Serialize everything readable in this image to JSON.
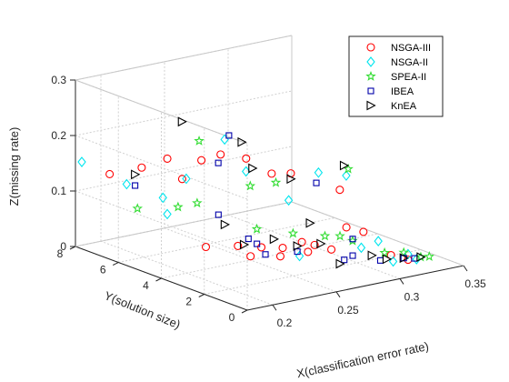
{
  "chart_data": {
    "type": "scatter",
    "title": "",
    "xlabel": "X(classification error rate)",
    "ylabel": "Y(solution size)",
    "zlabel": "Z(missing rate)",
    "xlim": [
      0.18,
      0.35
    ],
    "ylim": [
      0,
      8
    ],
    "zlim": [
      0,
      0.3
    ],
    "x_ticks": [
      "0.2",
      "0.25",
      "0.3",
      "0.35"
    ],
    "y_ticks": [
      "0",
      "2",
      "4",
      "6",
      "8"
    ],
    "z_ticks": [
      "0",
      "0.1",
      "0.2",
      "0.3"
    ],
    "grid": true,
    "legend_position": "top-right",
    "series": [
      {
        "name": "NSGA-III",
        "color": "#ff0000",
        "marker": "circle",
        "points": [
          [
            0.19,
            7.0,
            0.14
          ],
          [
            0.2,
            6.1,
            0.16
          ],
          [
            0.21,
            5.5,
            0.18
          ],
          [
            0.22,
            5.4,
            0.14
          ],
          [
            0.225,
            4.8,
            0.18
          ],
          [
            0.235,
            4.5,
            0.19
          ],
          [
            0.25,
            4.2,
            0.18
          ],
          [
            0.265,
            3.9,
            0.15
          ],
          [
            0.275,
            3.6,
            0.15
          ],
          [
            0.3,
            2.8,
            0.12
          ],
          [
            0.215,
            4.0,
            0.04
          ],
          [
            0.225,
            3.1,
            0.05
          ],
          [
            0.235,
            2.6,
            0.05
          ],
          [
            0.245,
            2.2,
            0.05
          ],
          [
            0.255,
            1.9,
            0.06
          ],
          [
            0.265,
            1.9,
            0.05
          ],
          [
            0.24,
            3.4,
            0.02
          ],
          [
            0.255,
            2.9,
            0.02
          ],
          [
            0.275,
            2.8,
            0.02
          ],
          [
            0.29,
            2.6,
            0.02
          ],
          [
            0.29,
            1.9,
            0.07
          ],
          [
            0.3,
            1.7,
            0.06
          ],
          [
            0.32,
            1.6,
            0.01
          ],
          [
            0.33,
            1.4,
            0.0
          ]
        ]
      },
      {
        "name": "NSGA-II",
        "color": "#00e5ee",
        "marker": "diamond",
        "points": [
          [
            0.185,
            8.0,
            0.15
          ],
          [
            0.2,
            6.8,
            0.12
          ],
          [
            0.215,
            6.0,
            0.1
          ],
          [
            0.21,
            5.5,
            0.08
          ],
          [
            0.23,
            5.8,
            0.13
          ],
          [
            0.25,
            5.2,
            0.2
          ],
          [
            0.255,
            4.5,
            0.15
          ],
          [
            0.275,
            3.7,
            0.1
          ],
          [
            0.29,
            3.2,
            0.15
          ],
          [
            0.3,
            2.5,
            0.15
          ],
          [
            0.265,
            2.6,
            0.02
          ],
          [
            0.3,
            1.8,
            0.03
          ],
          [
            0.31,
            1.6,
            0.04
          ],
          [
            0.32,
            1.5,
            0.0
          ],
          [
            0.33,
            1.4,
            0.01
          ],
          [
            0.335,
            1.3,
            0.0
          ]
        ]
      },
      {
        "name": "SPEA-II",
        "color": "#33dd33",
        "marker": "star",
        "points": [
          [
            0.195,
            6.0,
            0.09
          ],
          [
            0.21,
            5.0,
            0.1
          ],
          [
            0.225,
            5.0,
            0.1
          ],
          [
            0.235,
            5.5,
            0.2
          ],
          [
            0.26,
            4.6,
            0.12
          ],
          [
            0.27,
            4.0,
            0.13
          ],
          [
            0.31,
            3.0,
            0.15
          ],
          [
            0.25,
            3.7,
            0.06
          ],
          [
            0.27,
            3.2,
            0.05
          ],
          [
            0.29,
            2.9,
            0.04
          ],
          [
            0.305,
            2.5,
            0.03
          ],
          [
            0.29,
            2.2,
            0.05
          ],
          [
            0.32,
            1.9,
            0.01
          ],
          [
            0.33,
            1.6,
            0.01
          ],
          [
            0.34,
            1.4,
            0.0
          ],
          [
            0.345,
            1.3,
            0.0
          ]
        ]
      },
      {
        "name": "IBEA",
        "color": "#0000aa",
        "marker": "square",
        "points": [
          [
            0.21,
            7.0,
            0.11
          ],
          [
            0.25,
            5.0,
            0.21
          ],
          [
            0.245,
            5.2,
            0.16
          ],
          [
            0.235,
            4.6,
            0.08
          ],
          [
            0.29,
            3.3,
            0.13
          ],
          [
            0.24,
            3.5,
            0.05
          ],
          [
            0.245,
            3.4,
            0.04
          ],
          [
            0.25,
            3.3,
            0.02
          ],
          [
            0.27,
            3.0,
            0.02
          ],
          [
            0.3,
            2.2,
            0.04
          ],
          [
            0.29,
            2.0,
            0.01
          ],
          [
            0.3,
            2.2,
            0.01
          ],
          [
            0.315,
            1.8,
            0.0
          ],
          [
            0.33,
            1.6,
            0.0
          ],
          [
            0.335,
            1.4,
            0.0
          ]
        ]
      },
      {
        "name": "KnEA",
        "color": "#000000",
        "marker": "triangle-right",
        "points": [
          [
            0.21,
            7.0,
            0.13
          ],
          [
            0.23,
            6.0,
            0.23
          ],
          [
            0.255,
            4.7,
            0.2
          ],
          [
            0.255,
            4.2,
            0.16
          ],
          [
            0.275,
            3.6,
            0.14
          ],
          [
            0.305,
            2.9,
            0.16
          ],
          [
            0.24,
            4.6,
            0.06
          ],
          [
            0.245,
            4.0,
            0.03
          ],
          [
            0.26,
            3.5,
            0.04
          ],
          [
            0.285,
            3.3,
            0.06
          ],
          [
            0.27,
            3.0,
            0.03
          ],
          [
            0.285,
            2.8,
            0.03
          ],
          [
            0.29,
            2.2,
            0.0
          ],
          [
            0.31,
            1.9,
            0.01
          ],
          [
            0.32,
            1.8,
            0.0
          ],
          [
            0.33,
            1.6,
            0.0
          ],
          [
            0.34,
            1.4,
            0.0
          ]
        ]
      }
    ]
  }
}
